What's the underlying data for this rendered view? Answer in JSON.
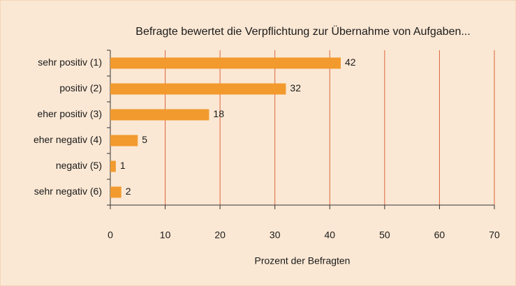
{
  "chart_data": {
    "type": "bar",
    "orientation": "horizontal",
    "title": "Befragte bewertet die Verpflichtung zur Übernahme von Aufgaben...",
    "categories": [
      "sehr positiv (1)",
      "positiv (2)",
      "eher positiv (3)",
      "eher negativ (4)",
      "negativ (5)",
      "sehr negativ (6)"
    ],
    "values": [
      42,
      32,
      18,
      5,
      1,
      2
    ],
    "value_labels": [
      "42",
      "32",
      "18",
      "5",
      "1",
      "2"
    ],
    "color": "#f29a2e",
    "x_label": "Prozent der Befragten",
    "xlim": [
      0,
      70
    ],
    "xticks": [
      0,
      10,
      20,
      30,
      40,
      50,
      60,
      70
    ],
    "grid": true
  }
}
